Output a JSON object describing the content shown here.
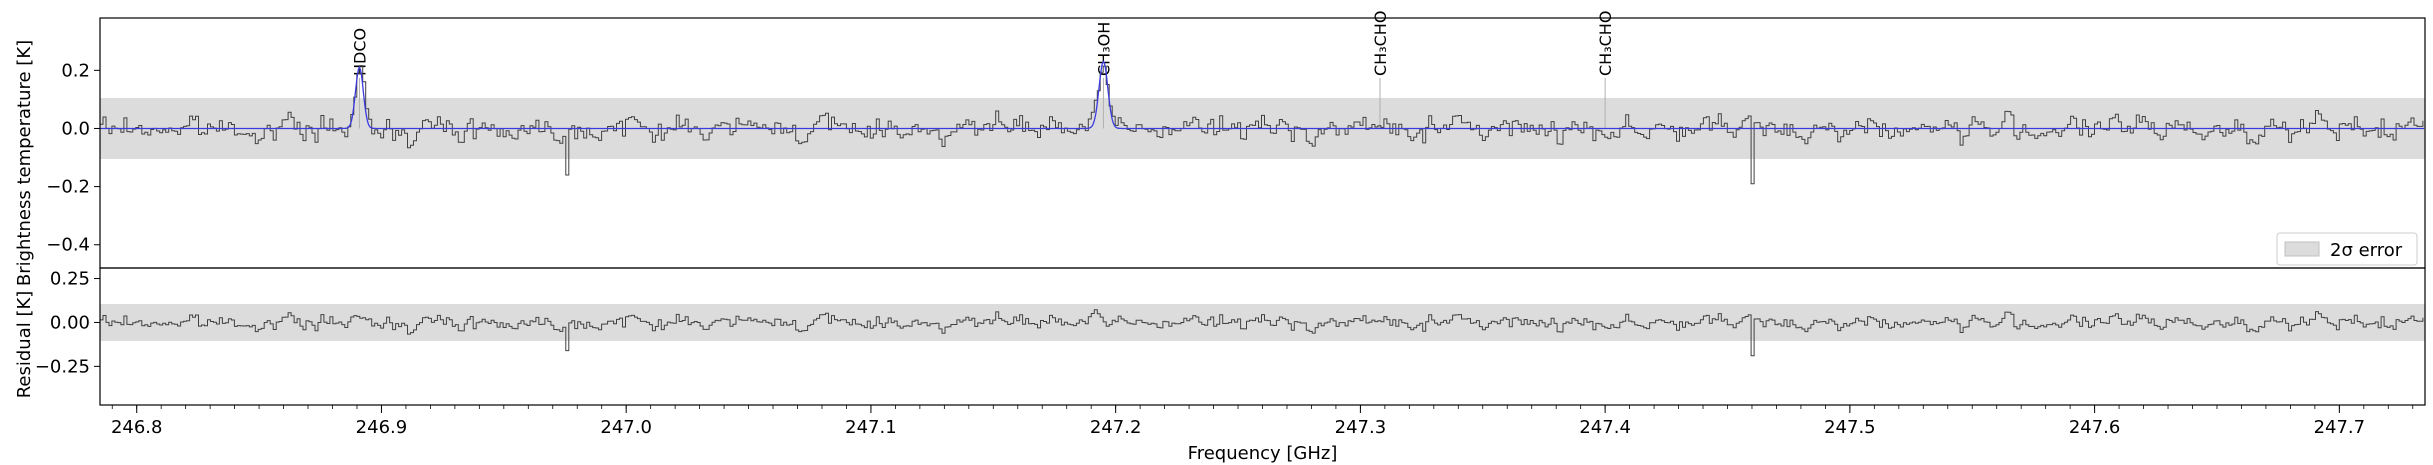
{
  "chart_data": [
    {
      "type": "line",
      "panel": "spectrum",
      "xlabel": "",
      "ylabel": "Brightness temperature [K]",
      "xlim": [
        246.785,
        247.735
      ],
      "ylim": [
        -0.48,
        0.38
      ],
      "yticks": [
        0.2,
        0.0,
        -0.2,
        -0.4
      ],
      "ytick_labels": [
        "0.2",
        "0.0",
        "−0.2",
        "−0.4"
      ],
      "error_band": [
        -0.105,
        0.105
      ],
      "legend": {
        "label": "2σ error",
        "position": "lower-right"
      },
      "line_labels": [
        {
          "x": 246.891,
          "label": "HDCO"
        },
        {
          "x": 247.195,
          "label": "CH3OH"
        },
        {
          "x": 247.308,
          "label": "CH3CHO"
        },
        {
          "x": 247.4,
          "label": "CH3CHO"
        }
      ],
      "peaks": [
        {
          "x": 246.891,
          "y": 0.21,
          "width": 0.0016
        },
        {
          "x": 247.195,
          "y": 0.23,
          "width": 0.0018
        }
      ],
      "series": [
        {
          "name": "Observed spectrum",
          "color": "#404040",
          "noise_sigma": 0.05,
          "seed": 7,
          "step": 0.00122
        },
        {
          "name": "Model",
          "color": "#3a3adf"
        }
      ],
      "notable_dips": [
        {
          "x": 246.975,
          "y": -0.16
        },
        {
          "x": 247.46,
          "y": -0.19
        }
      ]
    },
    {
      "type": "line",
      "panel": "residual",
      "xlabel": "Frequency [GHz]",
      "ylabel": "Residual [K]",
      "xlim": [
        246.785,
        247.735
      ],
      "ylim": [
        -0.47,
        0.31
      ],
      "yticks": [
        0.25,
        0.0,
        -0.25
      ],
      "ytick_labels": [
        "0.25",
        "0.00",
        "−0.25"
      ],
      "xticks": [
        246.8,
        246.9,
        247.0,
        247.1,
        247.2,
        247.3,
        247.4,
        247.5,
        247.6,
        247.7
      ],
      "xtick_labels": [
        "246.8",
        "246.9",
        "247.0",
        "247.1",
        "247.2",
        "247.3",
        "247.4",
        "247.5",
        "247.6",
        "247.7"
      ],
      "error_band": [
        -0.105,
        0.105
      ],
      "series": [
        {
          "name": "Residual",
          "color": "#404040"
        }
      ]
    }
  ],
  "colors": {
    "band": "#dcdcdc",
    "axes": "#000000",
    "spectrum": "#404040",
    "model": "#3a3adf",
    "marker_line": "#b0b0b0"
  }
}
